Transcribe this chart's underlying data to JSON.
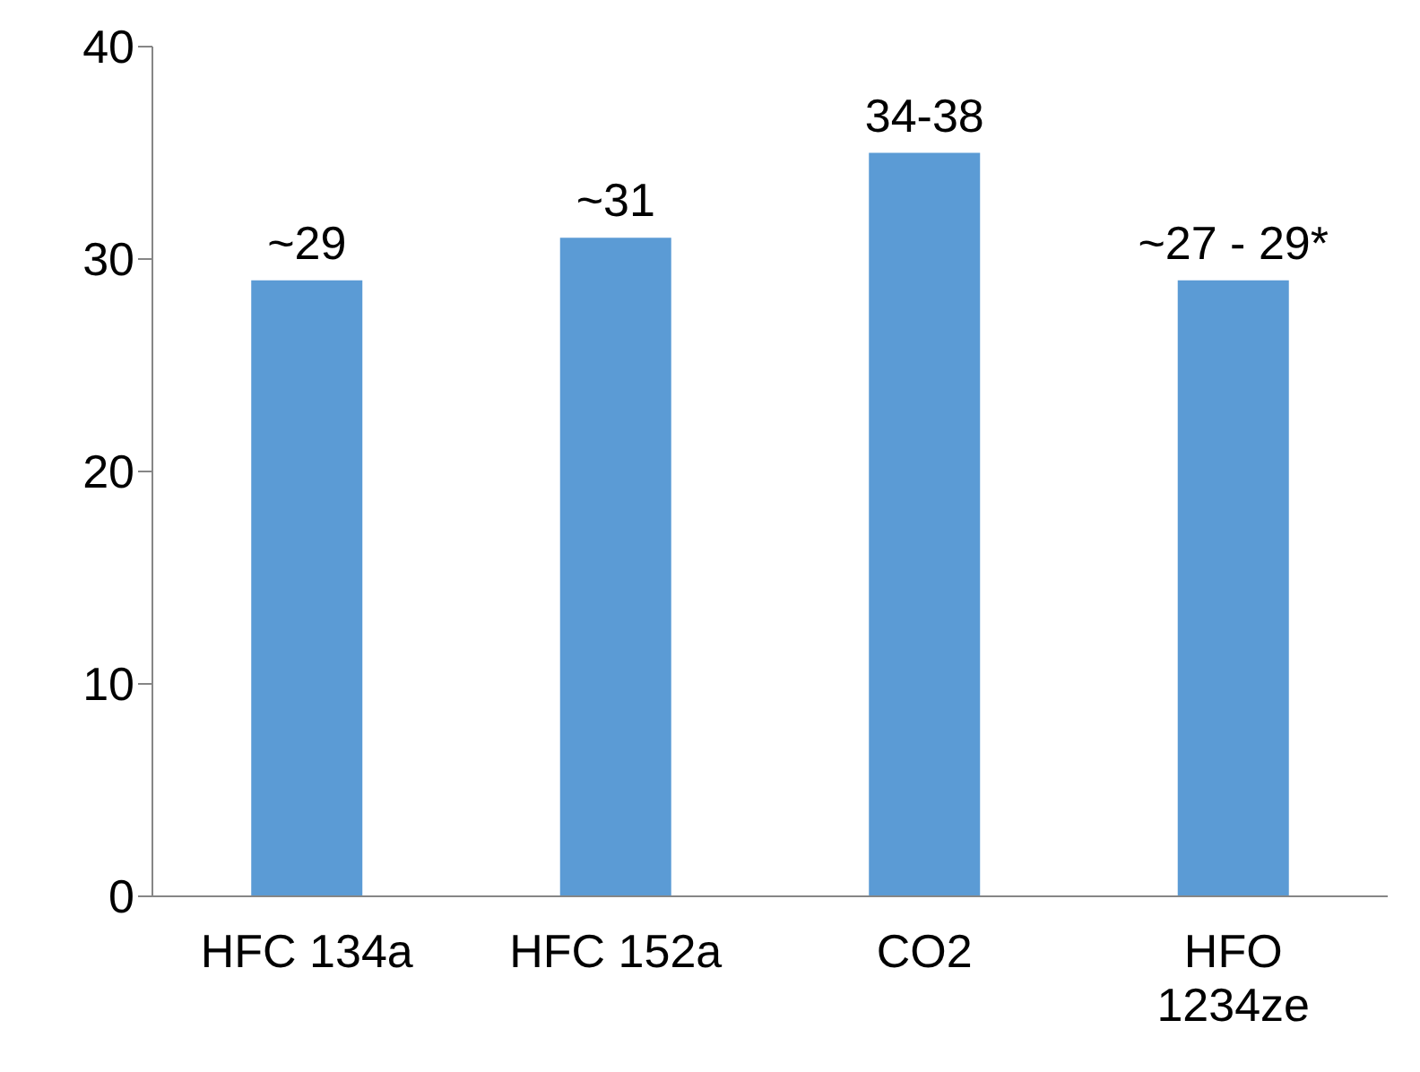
{
  "chart_data": {
    "type": "bar",
    "categories": [
      "HFC 134a",
      "HFC 152a",
      "CO2",
      "HFO 1234ze"
    ],
    "values": [
      29,
      31,
      35,
      29
    ],
    "value_labels": [
      "~29",
      "~31",
      "34-38",
      "~27 - 29*"
    ],
    "color": "#5b9bd5",
    "ylim": [
      0,
      40
    ],
    "yticks": [
      0,
      10,
      20,
      30,
      40
    ],
    "grid": false,
    "legend": false
  }
}
